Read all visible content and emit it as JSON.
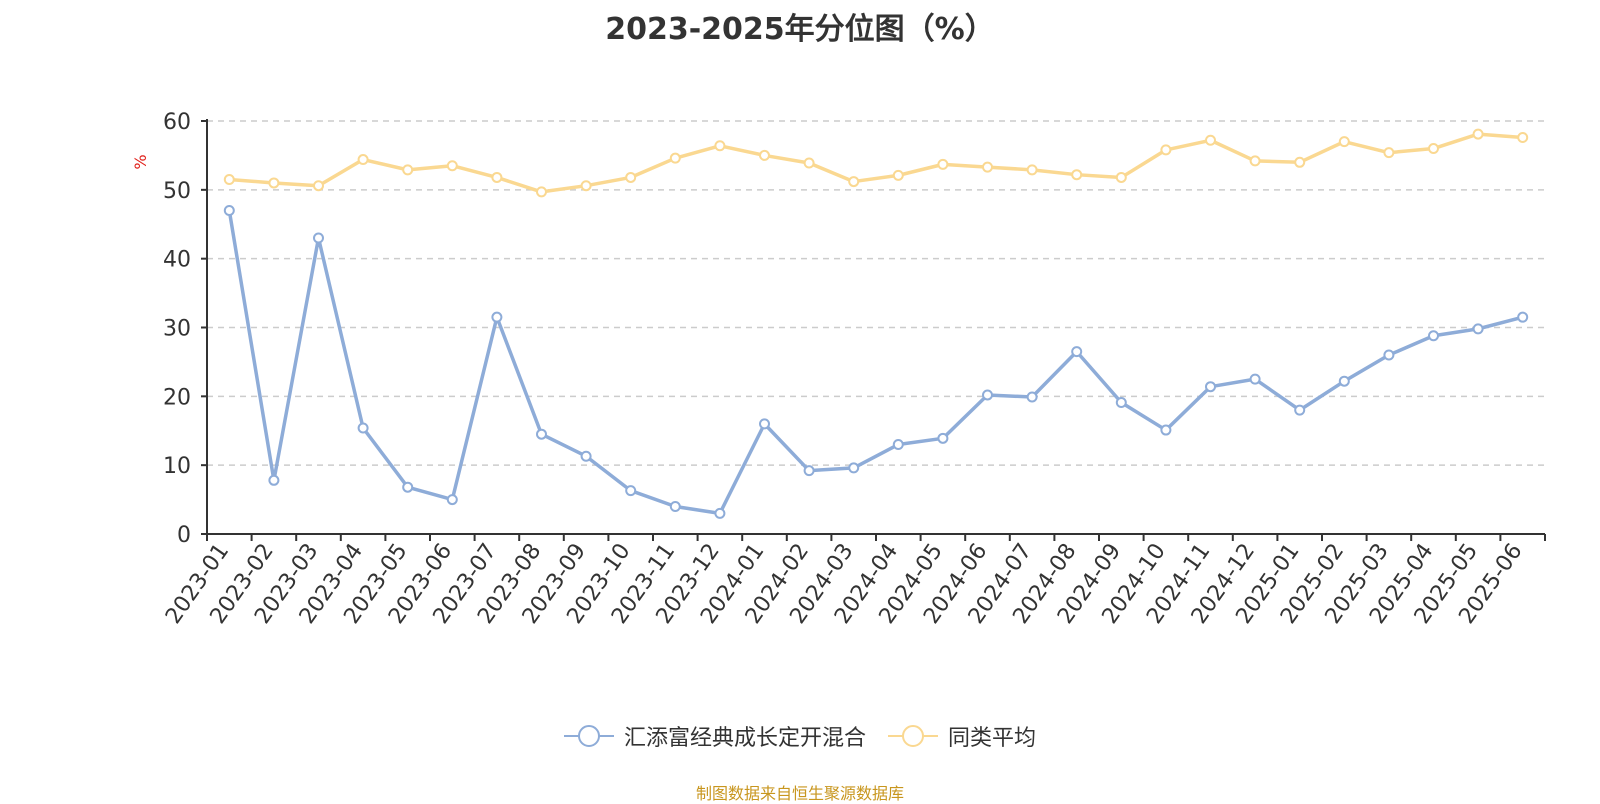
{
  "chart_data": {
    "type": "line",
    "title": "2023-2025年分位图（%）",
    "ylabel": "%",
    "xlabel": "",
    "ylim": [
      0,
      60
    ],
    "yticks": [
      0,
      10,
      20,
      30,
      40,
      50,
      60
    ],
    "grid": true,
    "legend_position": "bottom",
    "categories": [
      "2023-01",
      "2023-02",
      "2023-03",
      "2023-04",
      "2023-05",
      "2023-06",
      "2023-07",
      "2023-08",
      "2023-09",
      "2023-10",
      "2023-11",
      "2023-12",
      "2024-01",
      "2024-02",
      "2024-03",
      "2024-04",
      "2024-05",
      "2024-06",
      "2024-07",
      "2024-08",
      "2024-09",
      "2024-10",
      "2024-11",
      "2024-12",
      "2025-01",
      "2025-02",
      "2025-03",
      "2025-04",
      "2025-05",
      "2025-06"
    ],
    "series": [
      {
        "name": "汇添富经典成长定开混合",
        "color": "#8eacd8",
        "values": [
          47.0,
          7.8,
          43.0,
          15.4,
          6.8,
          5.0,
          31.5,
          14.5,
          11.3,
          6.3,
          4.0,
          3.0,
          16.0,
          9.2,
          9.6,
          13.0,
          13.9,
          20.2,
          19.9,
          26.5,
          19.1,
          15.1,
          21.4,
          22.5,
          18.0,
          22.2,
          26.0,
          28.8,
          29.8,
          31.5
        ]
      },
      {
        "name": "同类平均",
        "color": "#fad891",
        "values": [
          51.5,
          51.0,
          50.6,
          54.4,
          52.9,
          53.5,
          51.8,
          49.7,
          50.6,
          51.8,
          54.6,
          56.4,
          55.0,
          53.9,
          51.2,
          52.1,
          53.7,
          53.3,
          52.9,
          52.2,
          51.8,
          55.8,
          57.2,
          54.2,
          54.0,
          57.0,
          55.4,
          56.0,
          58.1,
          57.6
        ]
      }
    ]
  },
  "source_note": "制图数据来自恒生聚源数据库"
}
